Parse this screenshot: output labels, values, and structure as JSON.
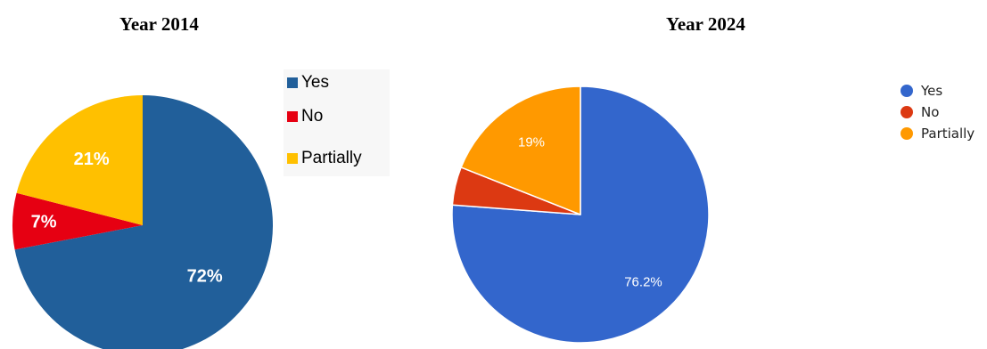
{
  "chart_data": [
    {
      "type": "pie",
      "title": "Year 2014",
      "categories": [
        "Yes",
        "No",
        "Partially"
      ],
      "values": [
        72,
        7,
        21
      ],
      "labels": [
        "72%",
        "7%",
        "21%"
      ],
      "colors": [
        "#215F9A",
        "#E60012",
        "#FFC000"
      ],
      "legend": "right"
    },
    {
      "type": "pie",
      "title": "Year 2024",
      "categories": [
        "Yes",
        "No",
        "Partially"
      ],
      "values": [
        76.2,
        4.8,
        19
      ],
      "labels": [
        "76.2%",
        "",
        "19%"
      ],
      "colors": [
        "#3366CC",
        "#DC3912",
        "#FF9900"
      ],
      "legend": "right"
    }
  ]
}
